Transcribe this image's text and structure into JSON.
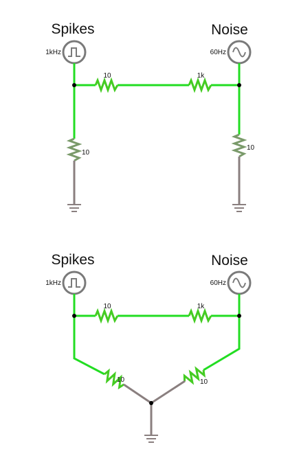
{
  "colors": {
    "wire_active": "#22dd22",
    "wire_ground": "#8a7f7f",
    "source_stroke": "#7a7a7a",
    "resistor_green": "#44cc22",
    "resistor_gray": "#7a9a6a",
    "node": "#000000",
    "text": "#111111"
  },
  "circuits": [
    {
      "spikes_label": "Spikes",
      "spikes_freq": "1kHz",
      "noise_label": "Noise",
      "noise_freq": "60Hz",
      "r_top_left": "10",
      "r_top_right": "1k",
      "r_left": "10",
      "r_right": "10"
    },
    {
      "spikes_label": "Spikes",
      "spikes_freq": "1kHz",
      "noise_label": "Noise",
      "noise_freq": "60Hz",
      "r_top_left": "10",
      "r_top_right": "1k",
      "r_left": "10",
      "r_right": "10"
    }
  ],
  "icons": {
    "spikes_source": "square-wave-icon",
    "noise_source": "sine-wave-icon",
    "ground": "ground-icon"
  }
}
